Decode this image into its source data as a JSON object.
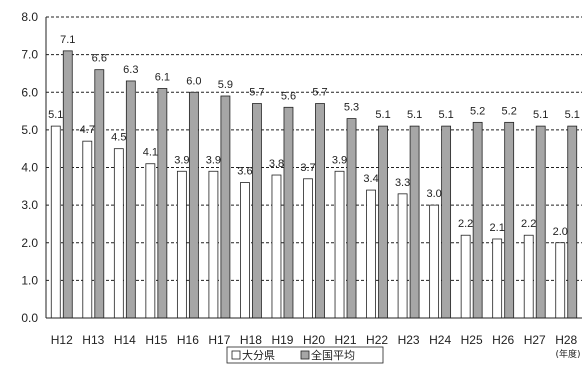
{
  "chart_data": {
    "type": "bar",
    "categories": [
      "H12",
      "H13",
      "H14",
      "H15",
      "H16",
      "H17",
      "H18",
      "H19",
      "H20",
      "H21",
      "H22",
      "H23",
      "H24",
      "H25",
      "H26",
      "H27",
      "H28"
    ],
    "series": [
      {
        "name": "大分県",
        "color": "#ffffff",
        "values": [
          5.1,
          4.7,
          4.5,
          4.1,
          3.9,
          3.9,
          3.6,
          3.8,
          3.7,
          3.9,
          3.4,
          3.3,
          3.0,
          2.2,
          2.1,
          2.2,
          2.0
        ],
        "labels": [
          "5.1",
          "4.7",
          "4.5",
          "4.1",
          "3.9",
          "3.9",
          "3.6",
          "3.8",
          "3.7",
          "3.9",
          "3.4",
          "3.3",
          "3.0",
          "2.2",
          "2.1",
          "2.2",
          "2.0"
        ]
      },
      {
        "name": "全国平均",
        "color": "#a6a6a6",
        "values": [
          7.1,
          6.6,
          6.3,
          6.1,
          6.0,
          5.9,
          5.7,
          5.6,
          5.7,
          5.3,
          5.1,
          5.1,
          5.1,
          5.2,
          5.2,
          5.1,
          5.1
        ],
        "labels": [
          "7.1",
          "6.6",
          "6.3",
          "6.1",
          "6.0",
          "5.9",
          "5.7",
          "5.6",
          "5.7",
          "5.3",
          "5.1",
          "5.1",
          "5.1",
          "5.2",
          "5.2",
          "5.1",
          "5.1"
        ]
      }
    ],
    "y_ticks": [
      "0.0",
      "1.0",
      "2.0",
      "3.0",
      "4.0",
      "5.0",
      "6.0",
      "7.0",
      "8.0"
    ],
    "ylim": [
      0,
      8
    ],
    "x_unit": "(年度)",
    "grid": true,
    "legend_position": "bottom"
  }
}
